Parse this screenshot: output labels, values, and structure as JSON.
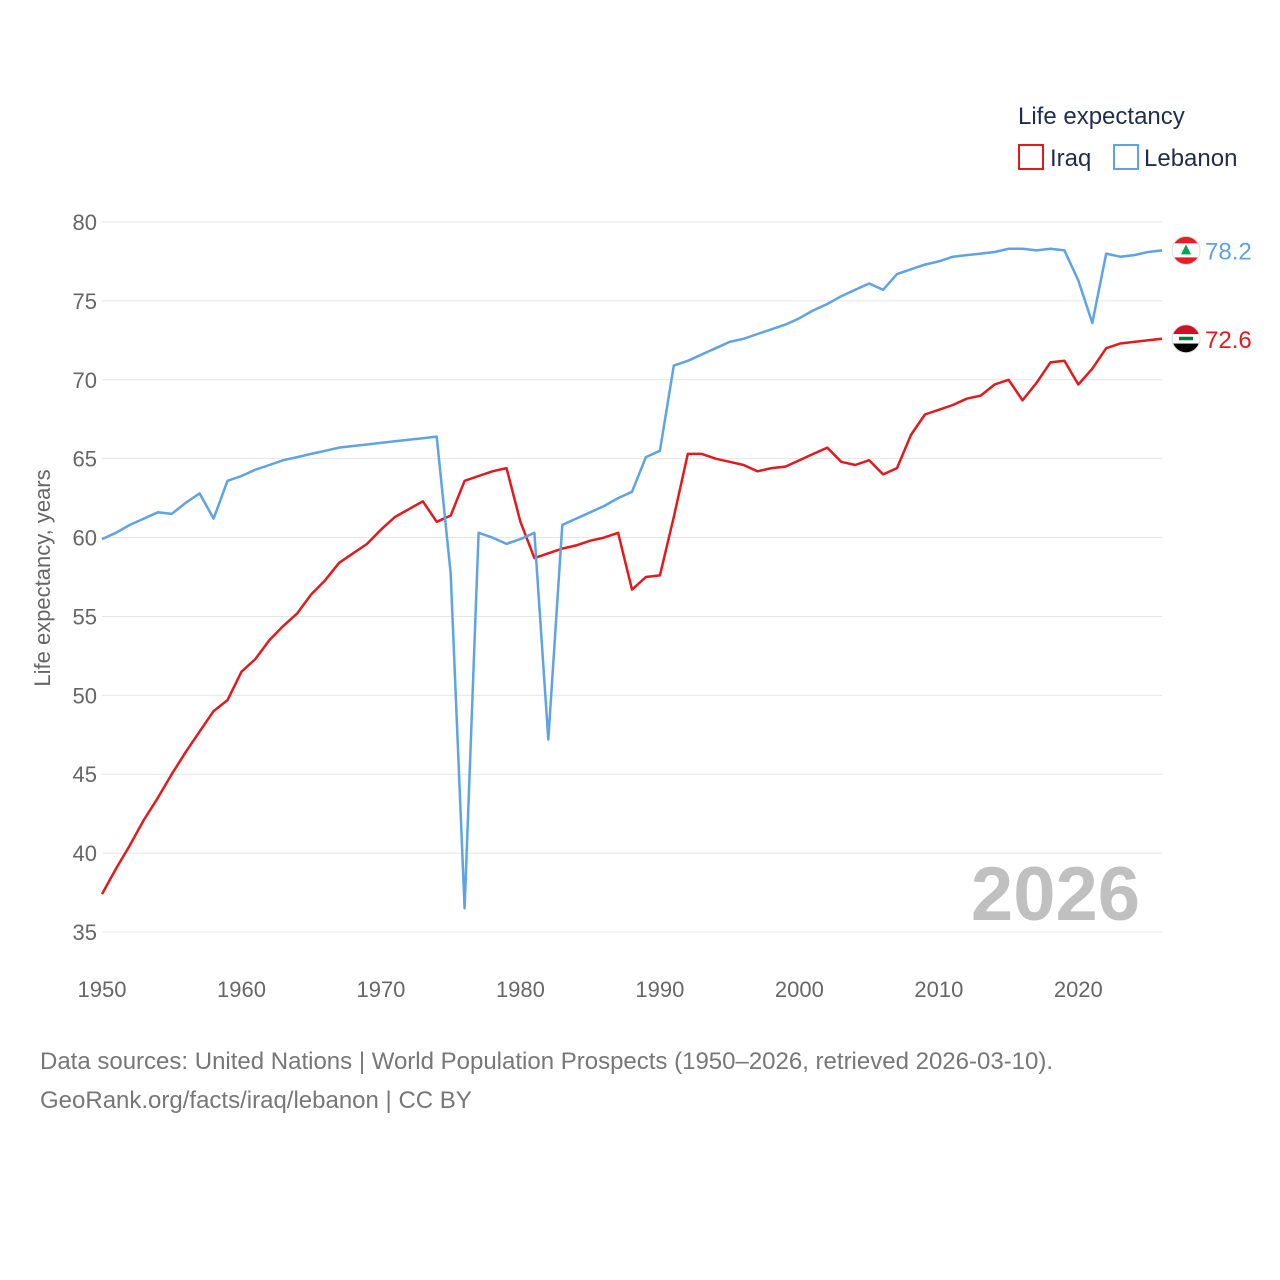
{
  "chart_data": {
    "type": "line",
    "title": "",
    "xlabel": "",
    "ylabel": "Life expectancy, years",
    "xlim": [
      1950,
      2026
    ],
    "ylim": [
      35,
      80
    ],
    "x_ticks": [
      1950,
      1960,
      1970,
      1980,
      1990,
      2000,
      2010,
      2020
    ],
    "y_ticks": [
      35,
      40,
      45,
      50,
      55,
      60,
      65,
      70,
      75,
      80
    ],
    "grid": true,
    "legend_title": "Life expectancy",
    "legend_position": "top-right",
    "year_watermark": "2026",
    "x": [
      1950,
      1951,
      1952,
      1953,
      1954,
      1955,
      1956,
      1957,
      1958,
      1959,
      1960,
      1961,
      1962,
      1963,
      1964,
      1965,
      1966,
      1967,
      1968,
      1969,
      1970,
      1971,
      1972,
      1973,
      1974,
      1975,
      1976,
      1977,
      1978,
      1979,
      1980,
      1981,
      1982,
      1983,
      1984,
      1985,
      1986,
      1987,
      1988,
      1989,
      1990,
      1991,
      1992,
      1993,
      1994,
      1995,
      1996,
      1997,
      1998,
      1999,
      2000,
      2001,
      2002,
      2003,
      2004,
      2005,
      2006,
      2007,
      2008,
      2009,
      2010,
      2011,
      2012,
      2013,
      2014,
      2015,
      2016,
      2017,
      2018,
      2019,
      2020,
      2021,
      2022,
      2023,
      2024,
      2025,
      2026
    ],
    "series": [
      {
        "name": "Iraq",
        "color": "#e31a1c",
        "end_label": "72.6",
        "flag": "iraq-flag",
        "values": [
          37.4,
          39.0,
          40.5,
          42.1,
          43.5,
          45.0,
          46.4,
          47.7,
          49.0,
          49.7,
          51.5,
          52.3,
          53.5,
          54.4,
          55.2,
          56.4,
          57.3,
          58.4,
          59.0,
          59.6,
          60.5,
          61.3,
          61.8,
          62.3,
          61.0,
          61.4,
          63.6,
          63.9,
          64.2,
          64.4,
          61.0,
          58.7,
          59.0,
          59.3,
          59.5,
          59.8,
          60.0,
          60.3,
          56.7,
          57.5,
          57.6,
          61.3,
          65.3,
          65.3,
          65.0,
          64.8,
          64.6,
          64.2,
          64.4,
          64.5,
          64.9,
          65.3,
          65.7,
          64.8,
          64.6,
          64.9,
          64.0,
          64.4,
          66.5,
          67.8,
          68.1,
          68.4,
          68.8,
          69.0,
          69.7,
          70.0,
          68.7,
          69.8,
          71.1,
          71.2,
          69.7,
          70.7,
          72.0,
          72.3,
          72.4,
          72.5,
          72.6
        ]
      },
      {
        "name": "Lebanon",
        "color": "#5ea3e4",
        "end_label": "78.2",
        "flag": "lebanon-flag",
        "values": [
          59.9,
          60.3,
          60.8,
          61.2,
          61.6,
          61.5,
          62.2,
          62.8,
          61.2,
          63.6,
          63.9,
          64.3,
          64.6,
          64.9,
          65.1,
          65.3,
          65.5,
          65.7,
          65.8,
          65.9,
          66.0,
          66.1,
          66.2,
          66.3,
          66.4,
          57.7,
          36.5,
          60.3,
          60.0,
          59.6,
          59.9,
          60.3,
          47.2,
          60.8,
          61.2,
          61.6,
          62.0,
          62.5,
          62.9,
          65.1,
          65.5,
          70.9,
          71.2,
          71.6,
          72.0,
          72.4,
          72.6,
          72.9,
          73.2,
          73.5,
          73.9,
          74.4,
          74.8,
          75.3,
          75.7,
          76.1,
          75.7,
          76.7,
          77.0,
          77.3,
          77.5,
          77.8,
          77.9,
          78.0,
          78.1,
          78.3,
          78.3,
          78.2,
          78.3,
          78.2,
          76.3,
          73.6,
          78.0,
          77.8,
          77.9,
          78.1,
          78.2
        ]
      }
    ]
  },
  "footer": {
    "source_line": "Data sources: United Nations | World Population Prospects (1950–2026, retrieved 2026-03-10).",
    "attribution_line": "GeoRank.org/facts/iraq/lebanon | CC BY"
  }
}
